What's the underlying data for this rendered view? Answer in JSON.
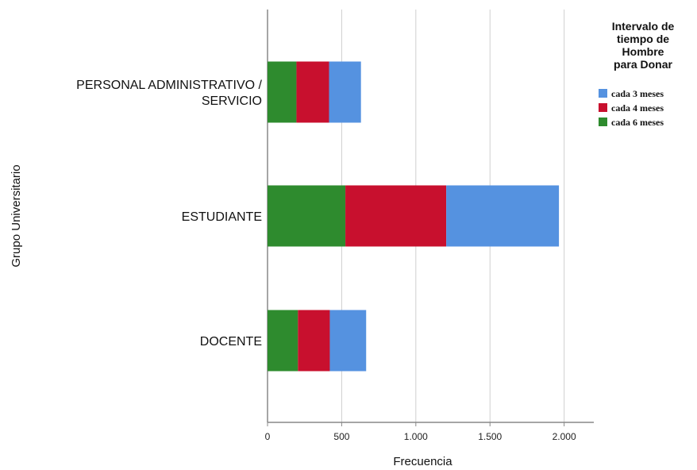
{
  "chart_data": {
    "type": "bar",
    "orientation": "horizontal",
    "stacked": true,
    "categories": [
      "PERSONAL ADMINISTRATIVO / SERVICIO",
      "ESTUDIANTE",
      "DOCENTE"
    ],
    "category_label_lines": [
      [
        "PERSONAL ADMINISTRATIVO /",
        "SERVICIO"
      ],
      [
        "ESTUDIANTE"
      ],
      [
        "DOCENTE"
      ]
    ],
    "series": [
      {
        "name": "cada 6 meses",
        "color": "#2e8b2e",
        "values": [
          195,
          525,
          205
        ]
      },
      {
        "name": "cada 4 meses",
        "color": "#c8102e",
        "values": [
          220,
          680,
          215
        ]
      },
      {
        "name": "cada 3 meses",
        "color": "#5592e0",
        "values": [
          215,
          760,
          245
        ]
      }
    ],
    "xlabel": "Frecuencia",
    "ylabel": "Grupo Universitario",
    "xlim": [
      0,
      2200
    ],
    "x_ticks": [
      0,
      500,
      1000,
      1500,
      2000
    ],
    "x_tick_labels": [
      "0",
      "500",
      "1.000",
      "1.500",
      "2.000"
    ],
    "grid": "vertical",
    "legend": {
      "title_lines": [
        "Intervalo de",
        "tiempo de",
        "Hombre",
        "para Donar"
      ],
      "placement": "top-right",
      "order": [
        "cada 3 meses",
        "cada 4 meses",
        "cada 6 meses"
      ]
    }
  }
}
